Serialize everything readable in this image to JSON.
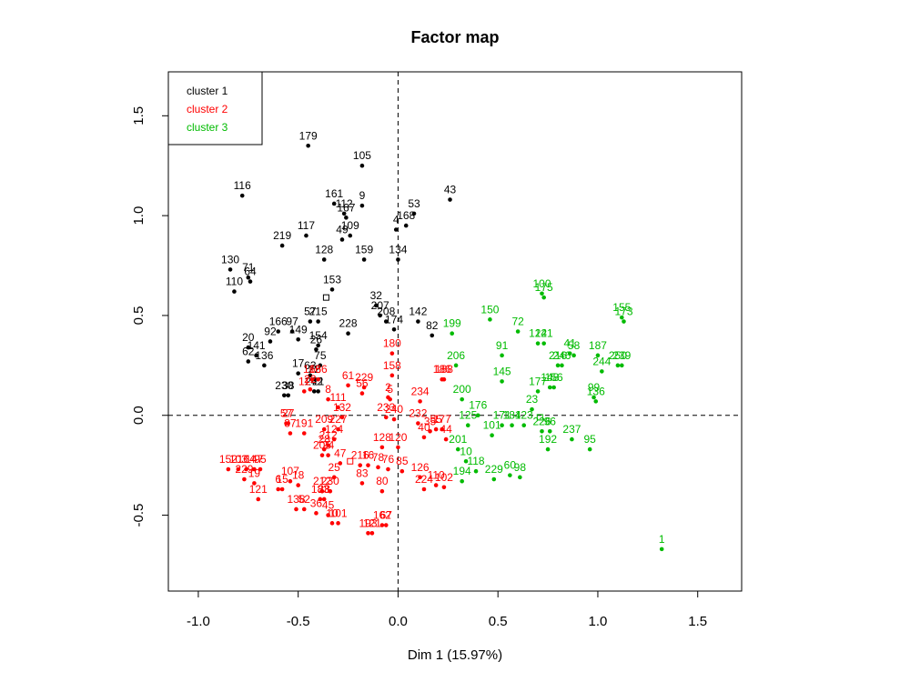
{
  "chart_data": {
    "type": "scatter",
    "title": "Factor map",
    "xlabel": "Dim 1 (15.97%)",
    "ylabel": "",
    "xlim": [
      -1.15,
      1.72
    ],
    "ylim": [
      -0.88,
      1.72
    ],
    "xticks": [
      -1.0,
      -0.5,
      0.0,
      0.5,
      1.0,
      1.5
    ],
    "xtick_labels": [
      "-1.0",
      "-0.5",
      "0.0",
      "0.5",
      "1.0",
      "1.5"
    ],
    "yticks": [
      -0.5,
      0.0,
      0.5,
      1.0,
      1.5
    ],
    "ytick_labels": [
      "-0.5",
      "0.0",
      "0.5",
      "1.0",
      "1.5"
    ],
    "reference_lines": {
      "x": 0,
      "y": 0,
      "style": "dashed"
    },
    "grid": false,
    "legend": {
      "placement": "top-left",
      "entries": [
        {
          "label": "cluster 1",
          "color": "#000000"
        },
        {
          "label": "cluster 2",
          "color": "#ff0000"
        },
        {
          "label": "cluster 3",
          "color": "#00bb00"
        }
      ]
    },
    "series": [
      {
        "name": "cluster 1",
        "color": "#000000",
        "points": [
          {
            "label": "179",
            "x": -0.45,
            "y": 1.35
          },
          {
            "label": "105",
            "x": -0.18,
            "y": 1.25
          },
          {
            "label": "116",
            "x": -0.78,
            "y": 1.1
          },
          {
            "label": "43",
            "x": 0.26,
            "y": 1.08
          },
          {
            "label": "161",
            "x": -0.32,
            "y": 1.06
          },
          {
            "label": "9",
            "x": -0.18,
            "y": 1.05
          },
          {
            "label": "112",
            "x": -0.27,
            "y": 1.01
          },
          {
            "label": "167",
            "x": -0.26,
            "y": 0.99
          },
          {
            "label": "53",
            "x": 0.08,
            "y": 1.01
          },
          {
            "label": "168",
            "x": 0.04,
            "y": 0.95
          },
          {
            "label": "4",
            "x": -0.01,
            "y": 0.93
          },
          {
            "label": "117",
            "x": -0.46,
            "y": 0.9
          },
          {
            "label": "109",
            "x": -0.24,
            "y": 0.9
          },
          {
            "label": "49",
            "x": -0.28,
            "y": 0.88
          },
          {
            "label": "219",
            "x": -0.58,
            "y": 0.85
          },
          {
            "label": "128",
            "x": -0.37,
            "y": 0.78
          },
          {
            "label": "159",
            "x": -0.17,
            "y": 0.78
          },
          {
            "label": "134",
            "x": 0.0,
            "y": 0.78
          },
          {
            "label": "130",
            "x": -0.84,
            "y": 0.73
          },
          {
            "label": "71",
            "x": -0.75,
            "y": 0.69
          },
          {
            "label": "64",
            "x": -0.74,
            "y": 0.67
          },
          {
            "label": "110",
            "x": -0.82,
            "y": 0.62
          },
          {
            "label": "153",
            "x": -0.33,
            "y": 0.63
          },
          {
            "label": "32",
            "x": -0.11,
            "y": 0.55
          },
          {
            "label": "207",
            "x": -0.09,
            "y": 0.5
          },
          {
            "label": "57",
            "x": -0.44,
            "y": 0.47
          },
          {
            "label": "215",
            "x": -0.4,
            "y": 0.47
          },
          {
            "label": "208",
            "x": -0.06,
            "y": 0.47
          },
          {
            "label": "174",
            "x": -0.02,
            "y": 0.43
          },
          {
            "label": "142",
            "x": 0.1,
            "y": 0.47
          },
          {
            "label": "166",
            "x": -0.6,
            "y": 0.42
          },
          {
            "label": "97",
            "x": -0.53,
            "y": 0.42
          },
          {
            "label": "228",
            "x": -0.25,
            "y": 0.41
          },
          {
            "label": "82",
            "x": 0.17,
            "y": 0.4
          },
          {
            "label": "149",
            "x": -0.5,
            "y": 0.38
          },
          {
            "label": "154",
            "x": -0.4,
            "y": 0.35
          },
          {
            "label": "92",
            "x": -0.64,
            "y": 0.37
          },
          {
            "label": "20",
            "x": -0.75,
            "y": 0.34
          },
          {
            "label": "26",
            "x": -0.41,
            "y": 0.33
          },
          {
            "label": "141",
            "x": -0.71,
            "y": 0.3
          },
          {
            "label": "62",
            "x": -0.75,
            "y": 0.27
          },
          {
            "label": "75",
            "x": -0.39,
            "y": 0.25
          },
          {
            "label": "136",
            "x": -0.67,
            "y": 0.25
          },
          {
            "label": "17",
            "x": -0.5,
            "y": 0.21
          },
          {
            "label": "63",
            "x": -0.44,
            "y": 0.2
          },
          {
            "label": "22",
            "x": -0.42,
            "y": 0.18
          },
          {
            "label": "242",
            "x": -0.42,
            "y": 0.12
          },
          {
            "label": "21",
            "x": -0.4,
            "y": 0.12
          },
          {
            "label": "230",
            "x": -0.57,
            "y": 0.1
          },
          {
            "label": "38",
            "x": -0.55,
            "y": 0.1
          }
        ]
      },
      {
        "name": "cluster 2",
        "color": "#ff0000",
        "points": [
          {
            "label": "180",
            "x": -0.03,
            "y": 0.31
          },
          {
            "label": "158",
            "x": -0.03,
            "y": 0.2
          },
          {
            "label": "186",
            "x": 0.22,
            "y": 0.18
          },
          {
            "label": "188",
            "x": 0.23,
            "y": 0.18
          },
          {
            "label": "168",
            "x": -0.43,
            "y": 0.18
          },
          {
            "label": "166",
            "x": -0.4,
            "y": 0.18
          },
          {
            "label": "61",
            "x": -0.25,
            "y": 0.15
          },
          {
            "label": "229",
            "x": -0.17,
            "y": 0.14
          },
          {
            "label": "22",
            "x": -0.44,
            "y": 0.13
          },
          {
            "label": "11",
            "x": -0.47,
            "y": 0.12
          },
          {
            "label": "56",
            "x": -0.18,
            "y": 0.11
          },
          {
            "label": "8",
            "x": -0.35,
            "y": 0.08
          },
          {
            "label": "2",
            "x": -0.05,
            "y": 0.09
          },
          {
            "label": "5",
            "x": -0.04,
            "y": 0.08
          },
          {
            "label": "234",
            "x": 0.11,
            "y": 0.07
          },
          {
            "label": "111",
            "x": -0.3,
            "y": 0.04
          },
          {
            "label": "132",
            "x": -0.28,
            "y": -0.01
          },
          {
            "label": "57",
            "x": -0.56,
            "y": -0.04
          },
          {
            "label": "27",
            "x": -0.55,
            "y": -0.04
          },
          {
            "label": "233",
            "x": -0.06,
            "y": -0.01
          },
          {
            "label": "240",
            "x": -0.02,
            "y": -0.02
          },
          {
            "label": "232",
            "x": 0.1,
            "y": -0.04
          },
          {
            "label": "209",
            "x": -0.37,
            "y": -0.07
          },
          {
            "label": "227",
            "x": -0.3,
            "y": -0.07
          },
          {
            "label": "35",
            "x": 0.16,
            "y": -0.08
          },
          {
            "label": "37",
            "x": -0.54,
            "y": -0.09
          },
          {
            "label": "191",
            "x": -0.47,
            "y": -0.09
          },
          {
            "label": "55",
            "x": 0.19,
            "y": -0.07
          },
          {
            "label": "177",
            "x": 0.22,
            "y": -0.07
          },
          {
            "label": "40",
            "x": 0.13,
            "y": -0.11
          },
          {
            "label": "124",
            "x": -0.32,
            "y": -0.12
          },
          {
            "label": "44",
            "x": 0.24,
            "y": -0.12
          },
          {
            "label": "212",
            "x": -0.35,
            "y": -0.15
          },
          {
            "label": "28",
            "x": -0.37,
            "y": -0.17
          },
          {
            "label": "128",
            "x": -0.08,
            "y": -0.16
          },
          {
            "label": "120",
            "x": 0.0,
            "y": -0.16
          },
          {
            "label": "152",
            "x": -0.85,
            "y": -0.27
          },
          {
            "label": "103",
            "x": -0.8,
            "y": -0.27
          },
          {
            "label": "164",
            "x": -0.76,
            "y": -0.27
          },
          {
            "label": "147",
            "x": -0.72,
            "y": -0.27
          },
          {
            "label": "95",
            "x": -0.69,
            "y": -0.27
          },
          {
            "label": "205",
            "x": -0.38,
            "y": -0.2
          },
          {
            "label": "24",
            "x": -0.35,
            "y": -0.2
          },
          {
            "label": "216",
            "x": -0.19,
            "y": -0.25
          },
          {
            "label": "16",
            "x": -0.15,
            "y": -0.25
          },
          {
            "label": "47",
            "x": -0.29,
            "y": -0.24
          },
          {
            "label": "78",
            "x": -0.1,
            "y": -0.26
          },
          {
            "label": "76",
            "x": -0.05,
            "y": -0.27
          },
          {
            "label": "85",
            "x": 0.02,
            "y": -0.28
          },
          {
            "label": "126",
            "x": 0.11,
            "y": -0.31
          },
          {
            "label": "107",
            "x": -0.54,
            "y": -0.33
          },
          {
            "label": "18",
            "x": -0.5,
            "y": -0.35
          },
          {
            "label": "25",
            "x": -0.32,
            "y": -0.31
          },
          {
            "label": "229",
            "x": -0.77,
            "y": -0.32
          },
          {
            "label": "19",
            "x": -0.72,
            "y": -0.34
          },
          {
            "label": "83",
            "x": -0.18,
            "y": -0.34
          },
          {
            "label": "6",
            "x": -0.6,
            "y": -0.37
          },
          {
            "label": "15",
            "x": -0.58,
            "y": -0.37
          },
          {
            "label": "80",
            "x": -0.08,
            "y": -0.38
          },
          {
            "label": "224",
            "x": 0.13,
            "y": -0.37
          },
          {
            "label": "110",
            "x": 0.19,
            "y": -0.35
          },
          {
            "label": "102",
            "x": 0.23,
            "y": -0.36
          },
          {
            "label": "212",
            "x": -0.38,
            "y": -0.38
          },
          {
            "label": "230",
            "x": -0.34,
            "y": -0.38
          },
          {
            "label": "121",
            "x": -0.7,
            "y": -0.42
          },
          {
            "label": "183",
            "x": -0.39,
            "y": -0.42
          },
          {
            "label": "28",
            "x": -0.37,
            "y": -0.42
          },
          {
            "label": "138",
            "x": -0.51,
            "y": -0.47
          },
          {
            "label": "52",
            "x": -0.47,
            "y": -0.47
          },
          {
            "label": "36",
            "x": -0.41,
            "y": -0.49
          },
          {
            "label": "45",
            "x": -0.35,
            "y": -0.5
          },
          {
            "label": "10",
            "x": -0.33,
            "y": -0.54
          },
          {
            "label": "101",
            "x": -0.3,
            "y": -0.54
          },
          {
            "label": "193",
            "x": -0.15,
            "y": -0.59
          },
          {
            "label": "121",
            "x": -0.13,
            "y": -0.59
          },
          {
            "label": "162",
            "x": -0.08,
            "y": -0.55
          },
          {
            "label": "67",
            "x": -0.06,
            "y": -0.55
          }
        ]
      },
      {
        "name": "cluster 3",
        "color": "#00bb00",
        "points": [
          {
            "label": "100",
            "x": 0.72,
            "y": 0.61
          },
          {
            "label": "175",
            "x": 0.73,
            "y": 0.59
          },
          {
            "label": "155",
            "x": 1.12,
            "y": 0.49
          },
          {
            "label": "173",
            "x": 1.13,
            "y": 0.47
          },
          {
            "label": "150",
            "x": 0.46,
            "y": 0.48
          },
          {
            "label": "72",
            "x": 0.6,
            "y": 0.42
          },
          {
            "label": "199",
            "x": 0.27,
            "y": 0.41
          },
          {
            "label": "124",
            "x": 0.7,
            "y": 0.36
          },
          {
            "label": "121",
            "x": 0.73,
            "y": 0.36
          },
          {
            "label": "91",
            "x": 0.52,
            "y": 0.3
          },
          {
            "label": "41",
            "x": 0.86,
            "y": 0.31
          },
          {
            "label": "58",
            "x": 0.88,
            "y": 0.3
          },
          {
            "label": "187",
            "x": 1.0,
            "y": 0.3
          },
          {
            "label": "206",
            "x": 0.29,
            "y": 0.25
          },
          {
            "label": "216",
            "x": 0.8,
            "y": 0.25
          },
          {
            "label": "246",
            "x": 0.82,
            "y": 0.25
          },
          {
            "label": "250",
            "x": 1.1,
            "y": 0.25
          },
          {
            "label": "239",
            "x": 1.12,
            "y": 0.25
          },
          {
            "label": "244",
            "x": 1.02,
            "y": 0.22
          },
          {
            "label": "145",
            "x": 0.52,
            "y": 0.17
          },
          {
            "label": "148",
            "x": 0.76,
            "y": 0.14
          },
          {
            "label": "156",
            "x": 0.78,
            "y": 0.14
          },
          {
            "label": "177",
            "x": 0.7,
            "y": 0.12
          },
          {
            "label": "99",
            "x": 0.98,
            "y": 0.09
          },
          {
            "label": "136",
            "x": 0.99,
            "y": 0.07
          },
          {
            "label": "200",
            "x": 0.32,
            "y": 0.08
          },
          {
            "label": "23",
            "x": 0.67,
            "y": 0.03
          },
          {
            "label": "176",
            "x": 0.4,
            "y": 0.0
          },
          {
            "label": "125",
            "x": 0.35,
            "y": -0.05
          },
          {
            "label": "171",
            "x": 0.52,
            "y": -0.05
          },
          {
            "label": "184",
            "x": 0.57,
            "y": -0.05
          },
          {
            "label": "123",
            "x": 0.63,
            "y": -0.05
          },
          {
            "label": "101",
            "x": 0.47,
            "y": -0.1
          },
          {
            "label": "226",
            "x": 0.72,
            "y": -0.08
          },
          {
            "label": "96",
            "x": 0.76,
            "y": -0.08
          },
          {
            "label": "237",
            "x": 0.87,
            "y": -0.12
          },
          {
            "label": "201",
            "x": 0.3,
            "y": -0.17
          },
          {
            "label": "95",
            "x": 0.96,
            "y": -0.17
          },
          {
            "label": "192",
            "x": 0.75,
            "y": -0.17
          },
          {
            "label": "10",
            "x": 0.34,
            "y": -0.23
          },
          {
            "label": "118",
            "x": 0.39,
            "y": -0.28
          },
          {
            "label": "60",
            "x": 0.56,
            "y": -0.3
          },
          {
            "label": "98",
            "x": 0.61,
            "y": -0.31
          },
          {
            "label": "229",
            "x": 0.48,
            "y": -0.32
          },
          {
            "label": "194",
            "x": 0.32,
            "y": -0.33
          },
          {
            "label": "1",
            "x": 1.32,
            "y": -0.67
          }
        ]
      }
    ],
    "extra_symbols": [
      {
        "shape": "open-square",
        "x": -0.36,
        "y": 0.59,
        "color": "#000000"
      },
      {
        "shape": "open-square",
        "x": -0.24,
        "y": -0.23,
        "color": "#ff0000"
      },
      {
        "shape": "open-square",
        "x": 0.71,
        "y": -0.01,
        "color": "#00bb00"
      }
    ]
  }
}
